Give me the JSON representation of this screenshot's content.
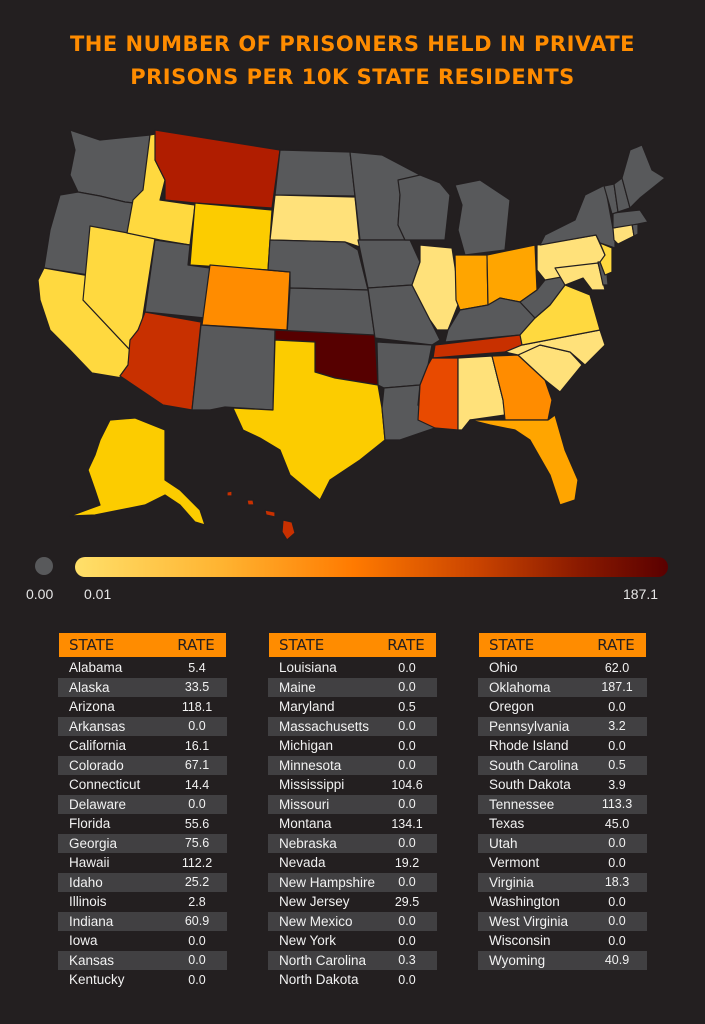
{
  "title": {
    "line1": "The Number of Prisoners Held in Private",
    "line2": "Prisons per 10K State Residents"
  },
  "legend": {
    "zero_label": "0.00",
    "min_label": "0.01",
    "max_label": "187.1",
    "zero_color": "#58595b",
    "gradient_colors": [
      "#ffe06a",
      "#ffb330",
      "#ff7a00",
      "#c94300",
      "#8a1a00",
      "#5a0000"
    ]
  },
  "table_headers": {
    "state": "STATE",
    "rate": "RATE"
  },
  "tables": [
    [
      {
        "state": "Alabama",
        "rate": "5.4"
      },
      {
        "state": "Alaska",
        "rate": "33.5"
      },
      {
        "state": "Arizona",
        "rate": "118.1"
      },
      {
        "state": "Arkansas",
        "rate": "0.0"
      },
      {
        "state": "California",
        "rate": "16.1"
      },
      {
        "state": "Colorado",
        "rate": "67.1"
      },
      {
        "state": "Connecticut",
        "rate": "14.4"
      },
      {
        "state": "Delaware",
        "rate": "0.0"
      },
      {
        "state": "Florida",
        "rate": "55.6"
      },
      {
        "state": "Georgia",
        "rate": "75.6"
      },
      {
        "state": "Hawaii",
        "rate": "112.2"
      },
      {
        "state": "Idaho",
        "rate": "25.2"
      },
      {
        "state": "Illinois",
        "rate": "2.8"
      },
      {
        "state": "Indiana",
        "rate": "60.9"
      },
      {
        "state": "Iowa",
        "rate": "0.0"
      },
      {
        "state": "Kansas",
        "rate": "0.0"
      },
      {
        "state": "Kentucky",
        "rate": "0.0"
      }
    ],
    [
      {
        "state": "Louisiana",
        "rate": "0.0"
      },
      {
        "state": "Maine",
        "rate": "0.0"
      },
      {
        "state": "Maryland",
        "rate": "0.5"
      },
      {
        "state": "Massachusetts",
        "rate": "0.0"
      },
      {
        "state": "Michigan",
        "rate": "0.0"
      },
      {
        "state": "Minnesota",
        "rate": "0.0"
      },
      {
        "state": "Mississippi",
        "rate": "104.6"
      },
      {
        "state": "Missouri",
        "rate": "0.0"
      },
      {
        "state": "Montana",
        "rate": "134.1"
      },
      {
        "state": "Nebraska",
        "rate": "0.0"
      },
      {
        "state": "Nevada",
        "rate": "19.2"
      },
      {
        "state": "New Hampshire",
        "rate": "0.0"
      },
      {
        "state": "New Jersey",
        "rate": "29.5"
      },
      {
        "state": "New Mexico",
        "rate": "0.0"
      },
      {
        "state": "New York",
        "rate": "0.0"
      },
      {
        "state": "North Carolina",
        "rate": "0.3"
      },
      {
        "state": "North Dakota",
        "rate": "0.0"
      }
    ],
    [
      {
        "state": "Ohio",
        "rate": "62.0"
      },
      {
        "state": "Oklahoma",
        "rate": "187.1"
      },
      {
        "state": "Oregon",
        "rate": "0.0"
      },
      {
        "state": "Pennsylvania",
        "rate": "3.2"
      },
      {
        "state": "Rhode Island",
        "rate": "0.0"
      },
      {
        "state": "South Carolina",
        "rate": "0.5"
      },
      {
        "state": "South Dakota",
        "rate": "3.9"
      },
      {
        "state": "Tennessee",
        "rate": "113.3"
      },
      {
        "state": "Texas",
        "rate": "45.0"
      },
      {
        "state": "Utah",
        "rate": "0.0"
      },
      {
        "state": "Vermont",
        "rate": "0.0"
      },
      {
        "state": "Virginia",
        "rate": "18.3"
      },
      {
        "state": "Washington",
        "rate": "0.0"
      },
      {
        "state": "West Virginia",
        "rate": "0.0"
      },
      {
        "state": "Wisconsin",
        "rate": "0.0"
      },
      {
        "state": "Wyoming",
        "rate": "40.9"
      }
    ]
  ],
  "map_colors": {
    "WA": "#58595b",
    "OR": "#58595b",
    "CA": "#ffd93f",
    "NV": "#ffd93f",
    "ID": "#ffd93f",
    "MT": "#b01d00",
    "WY": "#fccc00",
    "UT": "#58595b",
    "AZ": "#c83000",
    "CO": "#ff8c00",
    "NM": "#58595b",
    "ND": "#58595b",
    "SD": "#ffe17a",
    "NE": "#58595b",
    "KS": "#58595b",
    "OK": "#560000",
    "TX": "#fccc00",
    "MN": "#58595b",
    "IA": "#58595b",
    "MO": "#58595b",
    "AR": "#58595b",
    "LA": "#58595b",
    "WI": "#58595b",
    "IL": "#ffe17a",
    "MI": "#58595b",
    "IN": "#ffa500",
    "OH": "#ffa500",
    "KY": "#58595b",
    "TN": "#c83000",
    "MS": "#e84a00",
    "AL": "#ffe17a",
    "GA": "#ff8c00",
    "FL": "#ffa500",
    "SC": "#ffe17a",
    "NC": "#ffe17a",
    "VA": "#ffd93f",
    "WV": "#58595b",
    "MD": "#ffe17a",
    "DE": "#58595b",
    "PA": "#ffe17a",
    "NJ": "#ffd93f",
    "NY": "#58595b",
    "CT": "#ffe17a",
    "RI": "#58595b",
    "MA": "#58595b",
    "VT": "#58595b",
    "NH": "#58595b",
    "ME": "#58595b",
    "AK": "#fccc00",
    "HI": "#c83000"
  }
}
